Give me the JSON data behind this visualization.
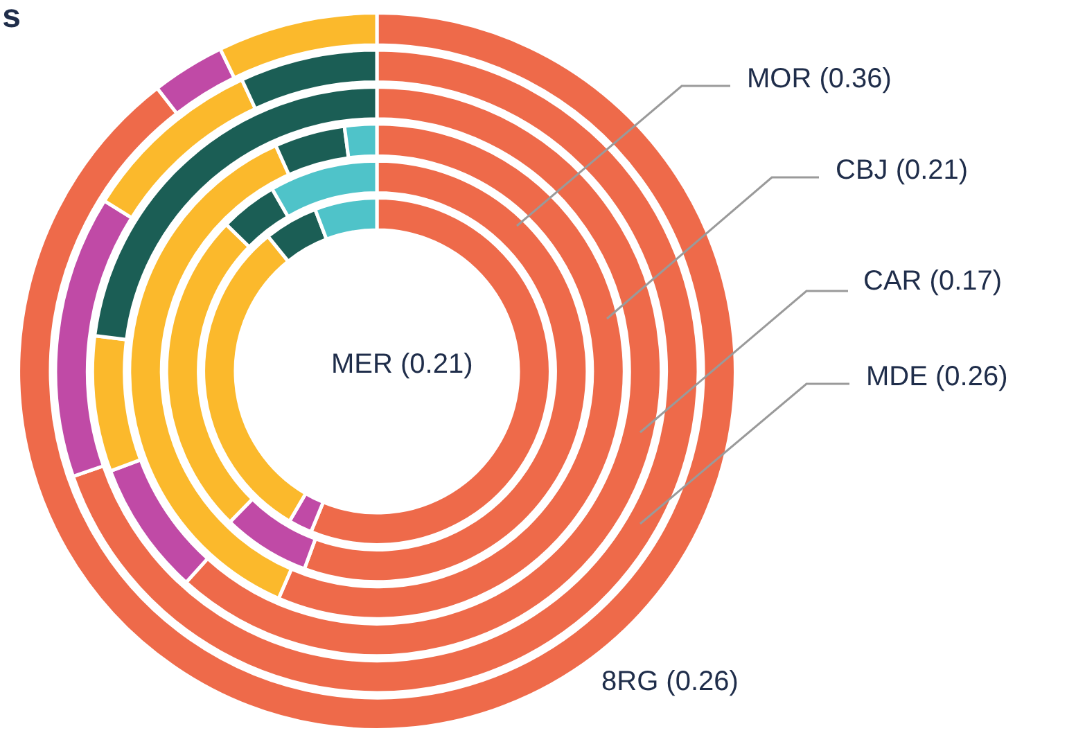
{
  "chart_data": [
    {
      "type": "donut",
      "title": "s",
      "annotations": [
        "MER (0.21)"
      ],
      "categories": [
        null,
        null,
        null,
        null,
        null
      ],
      "values": [
        56.2,
        2.2,
        30.8,
        5,
        5.8
      ],
      "colors": [
        "#ee6a4a",
        "#c04aa6",
        "#fbb92c",
        "#1b5e55",
        "#4fc3c9"
      ]
    },
    {
      "type": "donut",
      "annotations": [
        "MOR (0.36)"
      ],
      "categories": [
        null,
        null,
        null,
        null,
        null
      ],
      "values": [
        55.6,
        6.7,
        25,
        4.4,
        8.3
      ],
      "colors": [
        "#ee6a4a",
        "#c04aa6",
        "#fbb92c",
        "#1b5e55",
        "#4fc3c9"
      ]
    },
    {
      "type": "donut",
      "annotations": [
        "CBJ (0.21)"
      ],
      "categories": [
        null,
        null,
        null,
        null
      ],
      "values": [
        56.5,
        36.8,
        4.6,
        2.1
      ],
      "colors": [
        "#ee6a4a",
        "#fbb92c",
        "#1b5e55",
        "#4fc3c9"
      ]
    },
    {
      "type": "donut",
      "annotations": [
        "CAR (0.17)"
      ],
      "categories": [
        null,
        null,
        null,
        null
      ],
      "values": [
        61.7,
        7.6,
        7.7,
        23
      ],
      "colors": [
        "#ee6a4a",
        "#c04aa6",
        "#fbb92c",
        "#1b5e55"
      ]
    },
    {
      "type": "donut",
      "annotations": [
        "MDE (0.26)"
      ],
      "categories": [
        null,
        null,
        null,
        null
      ],
      "values": [
        69.7,
        14.2,
        9.2,
        6.9
      ],
      "colors": [
        "#ee6a4a",
        "#c04aa6",
        "#fbb92c",
        "#1b5e55"
      ]
    },
    {
      "type": "donut",
      "annotations": [
        "8RG (0.26)"
      ],
      "categories": [
        null,
        null,
        null
      ],
      "values": [
        89.5,
        3.3,
        7.2
      ],
      "colors": [
        "#ee6a4a",
        "#c04aa6",
        "#fbb92c"
      ]
    }
  ]
}
